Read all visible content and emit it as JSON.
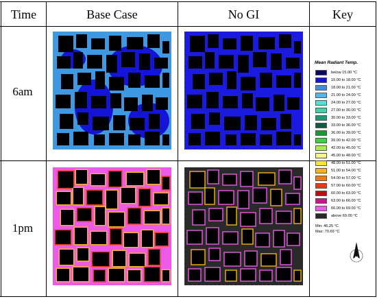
{
  "headers": {
    "time": "Time",
    "base_case": "Base Case",
    "no_gi": "No GI",
    "key": "Key"
  },
  "rows": [
    {
      "label": "6am"
    },
    {
      "label": "1pm"
    }
  ],
  "legend": {
    "title": "Mean Radiant Temp.",
    "items": [
      {
        "label": "below 15.00 °C",
        "color": "#0a0a5e"
      },
      {
        "label": "15.00 to 18.00 °C",
        "color": "#1414d8"
      },
      {
        "label": "18.00 to 21.00 °C",
        "color": "#3e8fe0"
      },
      {
        "label": "21.00 to 24.00 °C",
        "color": "#52b8ec"
      },
      {
        "label": "24.00 to 27.00 °C",
        "color": "#4fe2d4"
      },
      {
        "label": "27.00 to 30.00 °C",
        "color": "#37d6a8"
      },
      {
        "label": "30.00 to 33.00 °C",
        "color": "#1b9a78"
      },
      {
        "label": "33.00 to 36.00 °C",
        "color": "#0f5d3f"
      },
      {
        "label": "36.00 to 39.00 °C",
        "color": "#169c2e"
      },
      {
        "label": "39.00 to 42.00 °C",
        "color": "#3dd13f"
      },
      {
        "label": "42.00 to 45.00 °C",
        "color": "#a9ec4b"
      },
      {
        "label": "45.00 to 48.00 °C",
        "color": "#f4f48a"
      },
      {
        "label": "48.00 to 51.00 °C",
        "color": "#f5e53a"
      },
      {
        "label": "51.00 to 54.00 °C",
        "color": "#f4b41a"
      },
      {
        "label": "54.00 to 57.00 °C",
        "color": "#ef7a12"
      },
      {
        "label": "57.00 to 60.00 °C",
        "color": "#e43b12"
      },
      {
        "label": "60.00 to 63.00 °C",
        "color": "#b80f12"
      },
      {
        "label": "63.00 to 66.00 °C",
        "color": "#c81588"
      },
      {
        "label": "66.00 to 69.00 °C",
        "color": "#ee5ae8"
      },
      {
        "label": "above 69.00 °C",
        "color": "#2a2a2a"
      }
    ],
    "min": "Min: 46.25 °C",
    "max": "Max: 70.69 °C"
  },
  "compass": {
    "letter": "N"
  },
  "map_colors": {
    "building": "#000000",
    "am_base_a": "#3f98e2",
    "am_base_b": "#1414d8",
    "am_nogi": "#1a1ae0",
    "pm_base": "#ee5ae8",
    "pm_base_hot": "#f4b41a",
    "pm_base_red": "#e43b12",
    "pm_nogi": "#2a2a2a",
    "pm_nogi_edge": "#ee5ae8",
    "pm_nogi_edge_hot": "#f4b41a"
  }
}
